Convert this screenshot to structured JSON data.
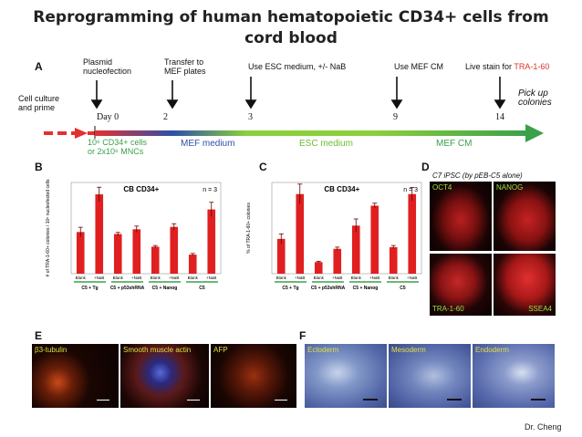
{
  "title_line1": "Reprogramming of human hematopoietic CD34+ cells from",
  "title_line2": "cord blood",
  "panel_labels": {
    "A": "A",
    "B": "B",
    "C": "C",
    "D": "D",
    "E": "E",
    "F": "F"
  },
  "timeline": {
    "left_label_1": "Cell culture",
    "left_label_2": "and prime",
    "events": [
      {
        "l1": "Plasmid",
        "l2": "nucleofection"
      },
      {
        "l1": "Transfer to",
        "l2": "MEF plates"
      },
      {
        "l1": "Use ESC medium, +/- NaB",
        "l2": ""
      },
      {
        "l1": "Use MEF CM",
        "l2": ""
      },
      {
        "l1": "Live stain for ",
        "l2": ""
      }
    ],
    "tra_label": "TRA-1-60",
    "days": [
      "Day 0",
      "2",
      "3",
      "9",
      "14"
    ],
    "pickup_1": "Pick up",
    "pickup_2": "colonies",
    "cells_1": "10⁶ CD34+ cells",
    "cells_2": "or 2x10⁶ MNCs",
    "segments": [
      "MEF medium",
      "ESC medium",
      "MEF CM"
    ]
  },
  "chart_data": [
    {
      "type": "bar",
      "title": "CB CD34+",
      "n_label": "n = 3",
      "ylabel": "# of TRA-1-60+ colonies / 10⁶ nucleofected cells",
      "categories": [
        "Blank",
        "+NaB",
        "Blank",
        "+NaB",
        "Blank",
        "+NaB",
        "Blank",
        "+NaB"
      ],
      "values": [
        105,
        200,
        100,
        112,
        68,
        118,
        48,
        162
      ],
      "errors": [
        12,
        18,
        4,
        8,
        3,
        8,
        3,
        18
      ],
      "groups": [
        "C5 + Tg",
        "C5 + p53shRNA",
        "C5 + Nanog",
        "C5"
      ],
      "ylim": [
        0,
        230
      ]
    },
    {
      "type": "bar",
      "title": "CB CD34+",
      "n_label": "n = 3",
      "ylabel": "% of TRA-1-60+ colonies",
      "categories": [
        "Blank",
        "+NaB",
        "Blank",
        "+NaB",
        "Blank",
        "+NaB",
        "Blank",
        "+NaB"
      ],
      "values": [
        21,
        48,
        7,
        15,
        29,
        41,
        16,
        48
      ],
      "errors": [
        3,
        6,
        0.5,
        1,
        4,
        1.5,
        1,
        4
      ],
      "groups": [
        "C5 + Tg",
        "C5 + p53shRNA",
        "C5 + Nanog",
        "C5"
      ],
      "ylim": [
        0,
        55
      ]
    }
  ],
  "panel_d": {
    "heading": "C7 iPSC (by pEB-C5 alone)",
    "tiles": [
      "OCT4",
      "NANOG",
      "TRA-1-60",
      "SSEA4"
    ]
  },
  "panel_e": {
    "tiles": [
      "β3-tubulin",
      "Smooth muscle actin",
      "AFP"
    ]
  },
  "panel_f": {
    "tiles": [
      "Ectoderm",
      "Mesoderm",
      "Endoderm"
    ]
  },
  "colors": {
    "red": "#e53030",
    "blue": "#2e4fa8",
    "green_light": "#8ccf3c",
    "green_dark": "#3aa04a",
    "bar": "#e02020",
    "tra": "#e03030",
    "stain_label": "#9ee044"
  },
  "credit": "Dr. Cheng"
}
